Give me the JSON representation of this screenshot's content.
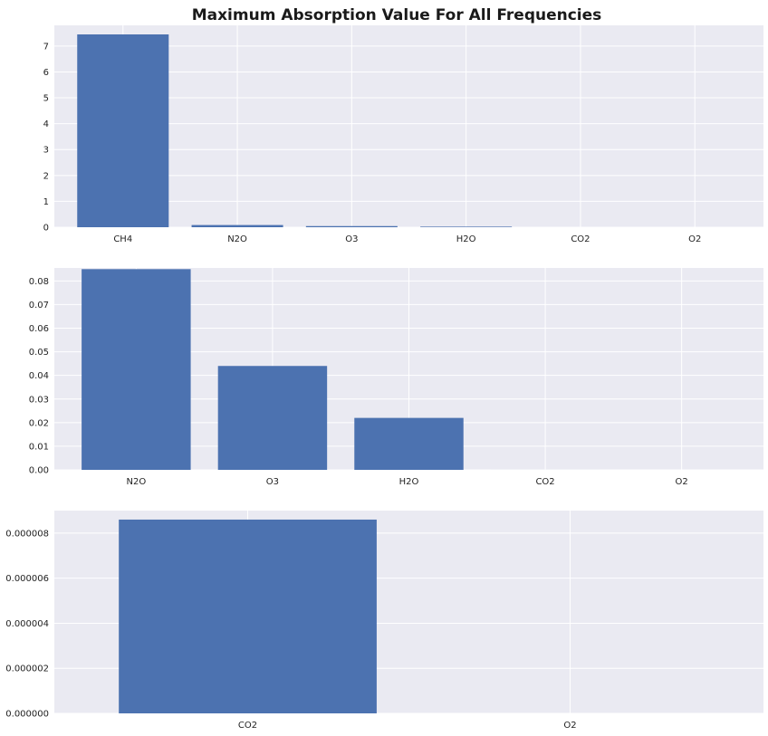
{
  "title": "Maximum Absorption Value For All Frequencies",
  "colors": {
    "bar": "#4c72b0",
    "panel_background": "#eaeaf2",
    "grid": "#ffffff",
    "text": "#222222"
  },
  "chart_data": [
    {
      "type": "bar",
      "title": "Maximum Absorption Value For All Frequencies",
      "categories": [
        "CH4",
        "N2O",
        "O3",
        "H2O",
        "CO2",
        "O2"
      ],
      "values": [
        7.45,
        0.085,
        0.044,
        0.022,
        8.6e-06,
        0.0
      ],
      "ylim": [
        0,
        7.8
      ],
      "yticks": [
        0,
        1,
        2,
        3,
        4,
        5,
        6,
        7
      ],
      "ytick_labels": [
        "0",
        "1",
        "2",
        "3",
        "4",
        "5",
        "6",
        "7"
      ],
      "xlabel": "",
      "ylabel": "",
      "grid": true
    },
    {
      "type": "bar",
      "title": "",
      "categories": [
        "N2O",
        "O3",
        "H2O",
        "CO2",
        "O2"
      ],
      "values": [
        0.085,
        0.044,
        0.022,
        8.6e-06,
        0.0
      ],
      "ylim": [
        0,
        0.0855
      ],
      "yticks": [
        0,
        0.01,
        0.02,
        0.03,
        0.04,
        0.05,
        0.06,
        0.07,
        0.08
      ],
      "ytick_labels": [
        "0.00",
        "0.01",
        "0.02",
        "0.03",
        "0.04",
        "0.05",
        "0.06",
        "0.07",
        "0.08"
      ],
      "xlabel": "",
      "ylabel": "",
      "grid": true
    },
    {
      "type": "bar",
      "title": "",
      "categories": [
        "CO2",
        "O2"
      ],
      "values": [
        8.6e-06,
        0.0
      ],
      "ylim": [
        0,
        9e-06
      ],
      "yticks": [
        0,
        2e-06,
        4e-06,
        6e-06,
        8e-06
      ],
      "ytick_labels": [
        "0.000000",
        "0.000002",
        "0.000004",
        "0.000006",
        "0.000008"
      ],
      "xlabel": "",
      "ylabel": "",
      "grid": true
    }
  ]
}
